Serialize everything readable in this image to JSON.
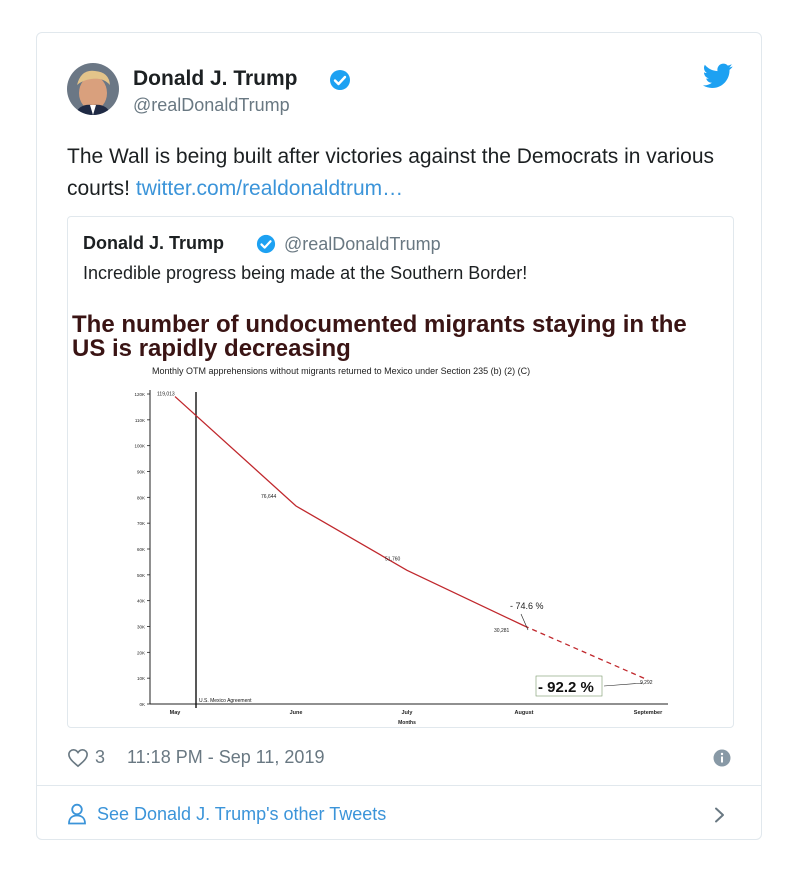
{
  "tweet": {
    "name": "Donald J. Trump",
    "handle": "@realDonaldTrump",
    "text": "The Wall is being built after victories against the Democrats in various courts!",
    "link": "twitter.com/realdonaldtrum…",
    "likes": "3",
    "time": "11:18 PM - Sep 11, 2019",
    "other_tweets": "See Donald J. Trump's other Tweets"
  },
  "quoted": {
    "name": "Donald J. Trump",
    "handle": "@realDonaldTrump",
    "text": "Incredible progress being made at the Southern Border!"
  },
  "colors": {
    "link": "#3b94d9",
    "verified": "#1da1f2",
    "line": "#c0282d",
    "title": "#3a1414"
  },
  "chart_data": {
    "type": "line",
    "title": "The number of undocumented migrants staying in the US is rapidly decreasing",
    "subtitle": "Monthly OTM apprehensions without migrants returned to Mexico under Section 235 (b) (2) (C)",
    "xlabel": "Months",
    "ylabel": "",
    "categories": [
      "May",
      "June",
      "July",
      "August",
      "September"
    ],
    "values": [
      119013,
      76644,
      51760,
      30281,
      9292
    ],
    "data_labels": [
      "119,013",
      "76,644",
      "51,760",
      "30,281",
      "9,292"
    ],
    "yticks": [
      "0K",
      "10K",
      "20K",
      "30K",
      "40K",
      "50K",
      "60K",
      "70K",
      "80K",
      "90K",
      "100K",
      "110K",
      "120K"
    ],
    "ylim": [
      0,
      120000
    ],
    "annotations": {
      "agreement": "U.S. Mexico Agreement",
      "pct1": "- 74.6 %",
      "pct2": "- 92.2 %"
    },
    "grid": false
  }
}
